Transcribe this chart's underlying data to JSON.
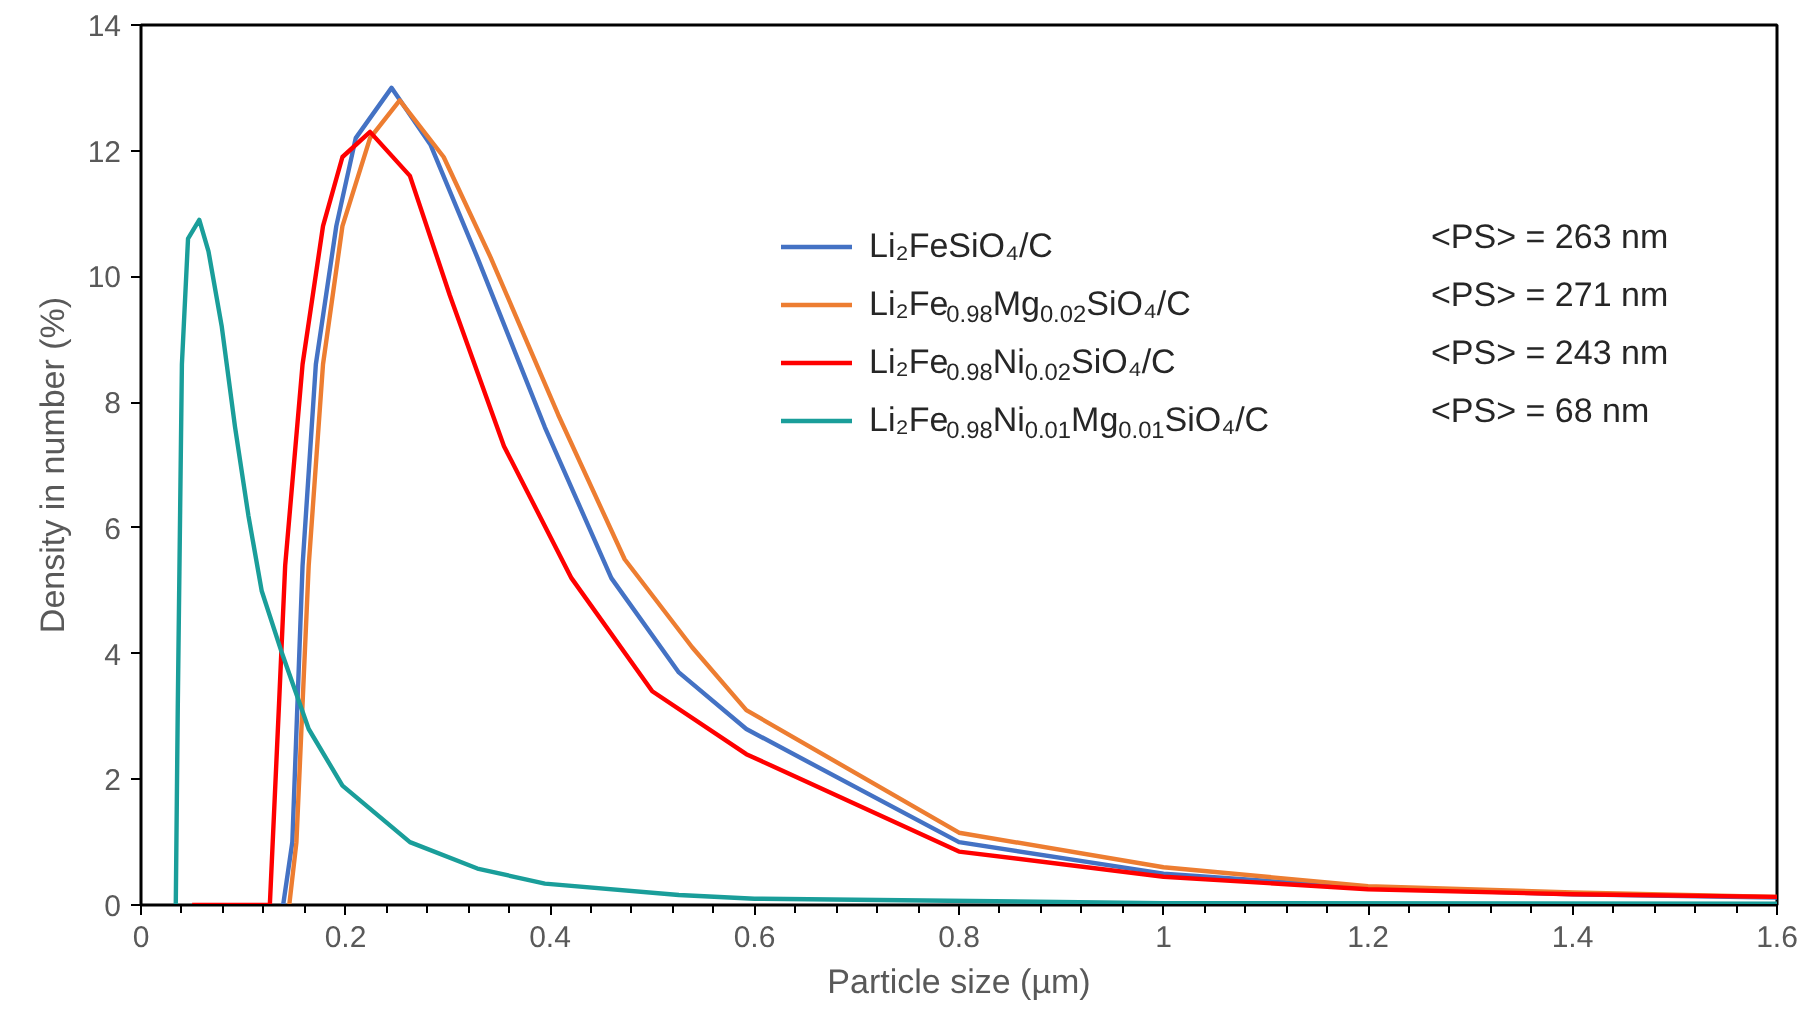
{
  "chart_data": {
    "type": "line",
    "xlabel": "Particle size (µm)",
    "ylabel": "Density in number (%)",
    "xlim": [
      0,
      1.6
    ],
    "xticks": [
      0,
      0.2,
      0.4,
      0.6,
      0.8,
      1,
      1.2,
      1.4,
      1.6
    ],
    "ylim": [
      0,
      14
    ],
    "yticks": [
      0,
      2,
      4,
      6,
      8,
      10,
      12,
      14
    ],
    "grid": false,
    "legend": "right",
    "marker": "none",
    "line_style": "solid",
    "annotations": [
      "<PS> = 263 nm",
      "<PS> = 271 nm",
      "<PS> = 243 nm",
      "<PS> = 68 nm"
    ],
    "series": [
      {
        "name": "Li₂FeSiO₄/C",
        "color": "#4472c4",
        "x": [
          0.139,
          0.148,
          0.158,
          0.171,
          0.191,
          0.21,
          0.245,
          0.283,
          0.329,
          0.395,
          0.46,
          0.526,
          0.592,
          0.8,
          1.0,
          1.2,
          1.4,
          1.6
        ],
        "values": [
          0,
          1.0,
          5.4,
          8.6,
          10.8,
          12.2,
          13.0,
          12.1,
          10.3,
          7.6,
          5.2,
          3.7,
          2.8,
          1.0,
          0.5,
          0.27,
          0.17,
          0.12
        ]
      },
      {
        "name": "Li₂Fe$_{0.98}$Mg$_{0.02}$SiO₄/C",
        "color": "#ed7d31",
        "x": [
          0.145,
          0.152,
          0.164,
          0.178,
          0.197,
          0.224,
          0.253,
          0.296,
          0.342,
          0.408,
          0.473,
          0.539,
          0.592,
          0.8,
          1.0,
          1.2,
          1.4,
          1.6
        ],
        "values": [
          0,
          1.0,
          5.4,
          8.6,
          10.8,
          12.2,
          12.8,
          11.9,
          10.3,
          7.8,
          5.5,
          4.1,
          3.1,
          1.15,
          0.6,
          0.3,
          0.2,
          0.13
        ]
      },
      {
        "name": "Li₂Fe$_{0.98}$Ni$_{0.02}$SiO₄/C",
        "color": "#ff0000",
        "x": [
          0.05,
          0.126,
          0.135,
          0.141,
          0.158,
          0.178,
          0.197,
          0.224,
          0.263,
          0.302,
          0.355,
          0.421,
          0.5,
          0.592,
          0.8,
          1.0,
          1.2,
          1.4,
          1.6
        ],
        "values": [
          0,
          0,
          3.2,
          5.4,
          8.6,
          10.8,
          11.9,
          12.3,
          11.6,
          9.7,
          7.3,
          5.2,
          3.4,
          2.4,
          0.85,
          0.45,
          0.25,
          0.17,
          0.13
        ]
      },
      {
        "name": "Li₂Fe$_{0.98}$Ni$_{0.01}$Mg$_{0.01}$SiO₄/C",
        "color": "#1a9e9a",
        "x": [
          0.034,
          0.036,
          0.04,
          0.046,
          0.057,
          0.066,
          0.079,
          0.092,
          0.105,
          0.118,
          0.138,
          0.164,
          0.197,
          0.263,
          0.329,
          0.395,
          0.526,
          0.6,
          1.0,
          1.6
        ],
        "values": [
          0,
          3.2,
          8.6,
          10.6,
          10.9,
          10.4,
          9.2,
          7.6,
          6.2,
          5.0,
          4.0,
          2.8,
          1.9,
          1.0,
          0.58,
          0.34,
          0.16,
          0.1,
          0.03,
          0.02
        ]
      }
    ]
  }
}
